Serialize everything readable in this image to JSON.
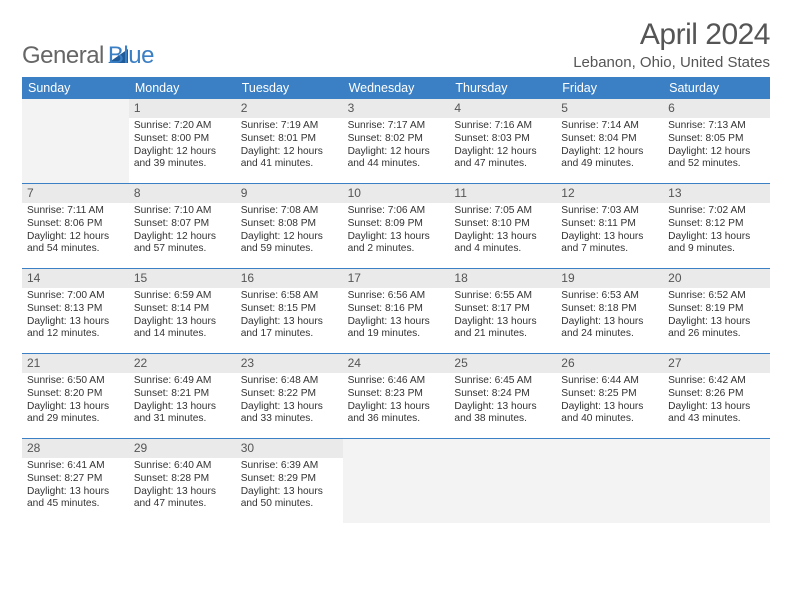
{
  "logo": {
    "text1": "General",
    "text2": "Blue",
    "color1": "#666666",
    "color2": "#3b7fc4"
  },
  "title": "April 2024",
  "location": "Lebanon, Ohio, United States",
  "accent_color": "#3b7fc4",
  "daynum_bg": "#eaeaea",
  "empty_bg": "#f3f3f3",
  "border_color": "#3b7fc4",
  "day_names": [
    "Sunday",
    "Monday",
    "Tuesday",
    "Wednesday",
    "Thursday",
    "Friday",
    "Saturday"
  ],
  "weeks": [
    [
      {
        "empty": true
      },
      {
        "n": "1",
        "sunrise": "7:20 AM",
        "sunset": "8:00 PM",
        "dl1": "Daylight: 12 hours",
        "dl2": "and 39 minutes."
      },
      {
        "n": "2",
        "sunrise": "7:19 AM",
        "sunset": "8:01 PM",
        "dl1": "Daylight: 12 hours",
        "dl2": "and 41 minutes."
      },
      {
        "n": "3",
        "sunrise": "7:17 AM",
        "sunset": "8:02 PM",
        "dl1": "Daylight: 12 hours",
        "dl2": "and 44 minutes."
      },
      {
        "n": "4",
        "sunrise": "7:16 AM",
        "sunset": "8:03 PM",
        "dl1": "Daylight: 12 hours",
        "dl2": "and 47 minutes."
      },
      {
        "n": "5",
        "sunrise": "7:14 AM",
        "sunset": "8:04 PM",
        "dl1": "Daylight: 12 hours",
        "dl2": "and 49 minutes."
      },
      {
        "n": "6",
        "sunrise": "7:13 AM",
        "sunset": "8:05 PM",
        "dl1": "Daylight: 12 hours",
        "dl2": "and 52 minutes."
      }
    ],
    [
      {
        "n": "7",
        "sunrise": "7:11 AM",
        "sunset": "8:06 PM",
        "dl1": "Daylight: 12 hours",
        "dl2": "and 54 minutes."
      },
      {
        "n": "8",
        "sunrise": "7:10 AM",
        "sunset": "8:07 PM",
        "dl1": "Daylight: 12 hours",
        "dl2": "and 57 minutes."
      },
      {
        "n": "9",
        "sunrise": "7:08 AM",
        "sunset": "8:08 PM",
        "dl1": "Daylight: 12 hours",
        "dl2": "and 59 minutes."
      },
      {
        "n": "10",
        "sunrise": "7:06 AM",
        "sunset": "8:09 PM",
        "dl1": "Daylight: 13 hours",
        "dl2": "and 2 minutes."
      },
      {
        "n": "11",
        "sunrise": "7:05 AM",
        "sunset": "8:10 PM",
        "dl1": "Daylight: 13 hours",
        "dl2": "and 4 minutes."
      },
      {
        "n": "12",
        "sunrise": "7:03 AM",
        "sunset": "8:11 PM",
        "dl1": "Daylight: 13 hours",
        "dl2": "and 7 minutes."
      },
      {
        "n": "13",
        "sunrise": "7:02 AM",
        "sunset": "8:12 PM",
        "dl1": "Daylight: 13 hours",
        "dl2": "and 9 minutes."
      }
    ],
    [
      {
        "n": "14",
        "sunrise": "7:00 AM",
        "sunset": "8:13 PM",
        "dl1": "Daylight: 13 hours",
        "dl2": "and 12 minutes."
      },
      {
        "n": "15",
        "sunrise": "6:59 AM",
        "sunset": "8:14 PM",
        "dl1": "Daylight: 13 hours",
        "dl2": "and 14 minutes."
      },
      {
        "n": "16",
        "sunrise": "6:58 AM",
        "sunset": "8:15 PM",
        "dl1": "Daylight: 13 hours",
        "dl2": "and 17 minutes."
      },
      {
        "n": "17",
        "sunrise": "6:56 AM",
        "sunset": "8:16 PM",
        "dl1": "Daylight: 13 hours",
        "dl2": "and 19 minutes."
      },
      {
        "n": "18",
        "sunrise": "6:55 AM",
        "sunset": "8:17 PM",
        "dl1": "Daylight: 13 hours",
        "dl2": "and 21 minutes."
      },
      {
        "n": "19",
        "sunrise": "6:53 AM",
        "sunset": "8:18 PM",
        "dl1": "Daylight: 13 hours",
        "dl2": "and 24 minutes."
      },
      {
        "n": "20",
        "sunrise": "6:52 AM",
        "sunset": "8:19 PM",
        "dl1": "Daylight: 13 hours",
        "dl2": "and 26 minutes."
      }
    ],
    [
      {
        "n": "21",
        "sunrise": "6:50 AM",
        "sunset": "8:20 PM",
        "dl1": "Daylight: 13 hours",
        "dl2": "and 29 minutes."
      },
      {
        "n": "22",
        "sunrise": "6:49 AM",
        "sunset": "8:21 PM",
        "dl1": "Daylight: 13 hours",
        "dl2": "and 31 minutes."
      },
      {
        "n": "23",
        "sunrise": "6:48 AM",
        "sunset": "8:22 PM",
        "dl1": "Daylight: 13 hours",
        "dl2": "and 33 minutes."
      },
      {
        "n": "24",
        "sunrise": "6:46 AM",
        "sunset": "8:23 PM",
        "dl1": "Daylight: 13 hours",
        "dl2": "and 36 minutes."
      },
      {
        "n": "25",
        "sunrise": "6:45 AM",
        "sunset": "8:24 PM",
        "dl1": "Daylight: 13 hours",
        "dl2": "and 38 minutes."
      },
      {
        "n": "26",
        "sunrise": "6:44 AM",
        "sunset": "8:25 PM",
        "dl1": "Daylight: 13 hours",
        "dl2": "and 40 minutes."
      },
      {
        "n": "27",
        "sunrise": "6:42 AM",
        "sunset": "8:26 PM",
        "dl1": "Daylight: 13 hours",
        "dl2": "and 43 minutes."
      }
    ],
    [
      {
        "n": "28",
        "sunrise": "6:41 AM",
        "sunset": "8:27 PM",
        "dl1": "Daylight: 13 hours",
        "dl2": "and 45 minutes."
      },
      {
        "n": "29",
        "sunrise": "6:40 AM",
        "sunset": "8:28 PM",
        "dl1": "Daylight: 13 hours",
        "dl2": "and 47 minutes."
      },
      {
        "n": "30",
        "sunrise": "6:39 AM",
        "sunset": "8:29 PM",
        "dl1": "Daylight: 13 hours",
        "dl2": "and 50 minutes."
      },
      {
        "empty": true
      },
      {
        "empty": true
      },
      {
        "empty": true
      },
      {
        "empty": true
      }
    ]
  ]
}
